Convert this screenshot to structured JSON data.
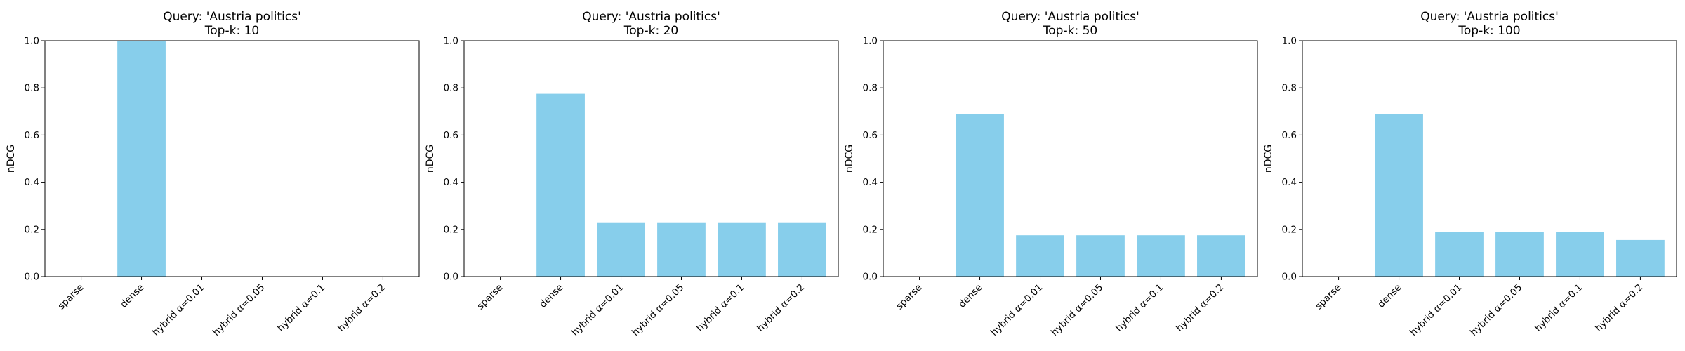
{
  "bar_color": "#87CEEB",
  "chart_data": [
    {
      "type": "bar",
      "title_line1": "Query: 'Austria politics'",
      "title_line2": "Top-k: 10",
      "xlabel": "",
      "ylabel": "nDCG",
      "ylim": [
        0,
        1.0
      ],
      "yticks": [
        "0.0",
        "0.2",
        "0.4",
        "0.6",
        "0.8",
        "1.0"
      ],
      "grid": false,
      "categories": [
        "sparse",
        "dense",
        "hybrid α=0.01",
        "hybrid α=0.05",
        "hybrid α=0.1",
        "hybrid α=0.2"
      ],
      "values": [
        0.0,
        1.0,
        0.0,
        0.0,
        0.0,
        0.0
      ]
    },
    {
      "type": "bar",
      "title_line1": "Query: 'Austria politics'",
      "title_line2": "Top-k: 20",
      "xlabel": "",
      "ylabel": "nDCG",
      "ylim": [
        0,
        1.0
      ],
      "yticks": [
        "0.0",
        "0.2",
        "0.4",
        "0.6",
        "0.8",
        "1.0"
      ],
      "grid": false,
      "categories": [
        "sparse",
        "dense",
        "hybrid α=0.01",
        "hybrid α=0.05",
        "hybrid α=0.1",
        "hybrid α=0.2"
      ],
      "values": [
        0.0,
        0.775,
        0.23,
        0.23,
        0.23,
        0.23
      ]
    },
    {
      "type": "bar",
      "title_line1": "Query: 'Austria politics'",
      "title_line2": "Top-k: 50",
      "xlabel": "",
      "ylabel": "nDCG",
      "ylim": [
        0,
        1.0
      ],
      "yticks": [
        "0.0",
        "0.2",
        "0.4",
        "0.6",
        "0.8",
        "1.0"
      ],
      "grid": false,
      "categories": [
        "sparse",
        "dense",
        "hybrid α=0.01",
        "hybrid α=0.05",
        "hybrid α=0.1",
        "hybrid α=0.2"
      ],
      "values": [
        0.0,
        0.69,
        0.175,
        0.175,
        0.175,
        0.175
      ]
    },
    {
      "type": "bar",
      "title_line1": "Query: 'Austria politics'",
      "title_line2": "Top-k: 100",
      "xlabel": "",
      "ylabel": "nDCG",
      "ylim": [
        0,
        1.0
      ],
      "yticks": [
        "0.0",
        "0.2",
        "0.4",
        "0.6",
        "0.8",
        "1.0"
      ],
      "grid": false,
      "categories": [
        "sparse",
        "dense",
        "hybrid α=0.01",
        "hybrid α=0.05",
        "hybrid α=0.1",
        "hybrid α=0.2"
      ],
      "values": [
        0.0,
        0.69,
        0.19,
        0.19,
        0.19,
        0.155
      ]
    }
  ]
}
